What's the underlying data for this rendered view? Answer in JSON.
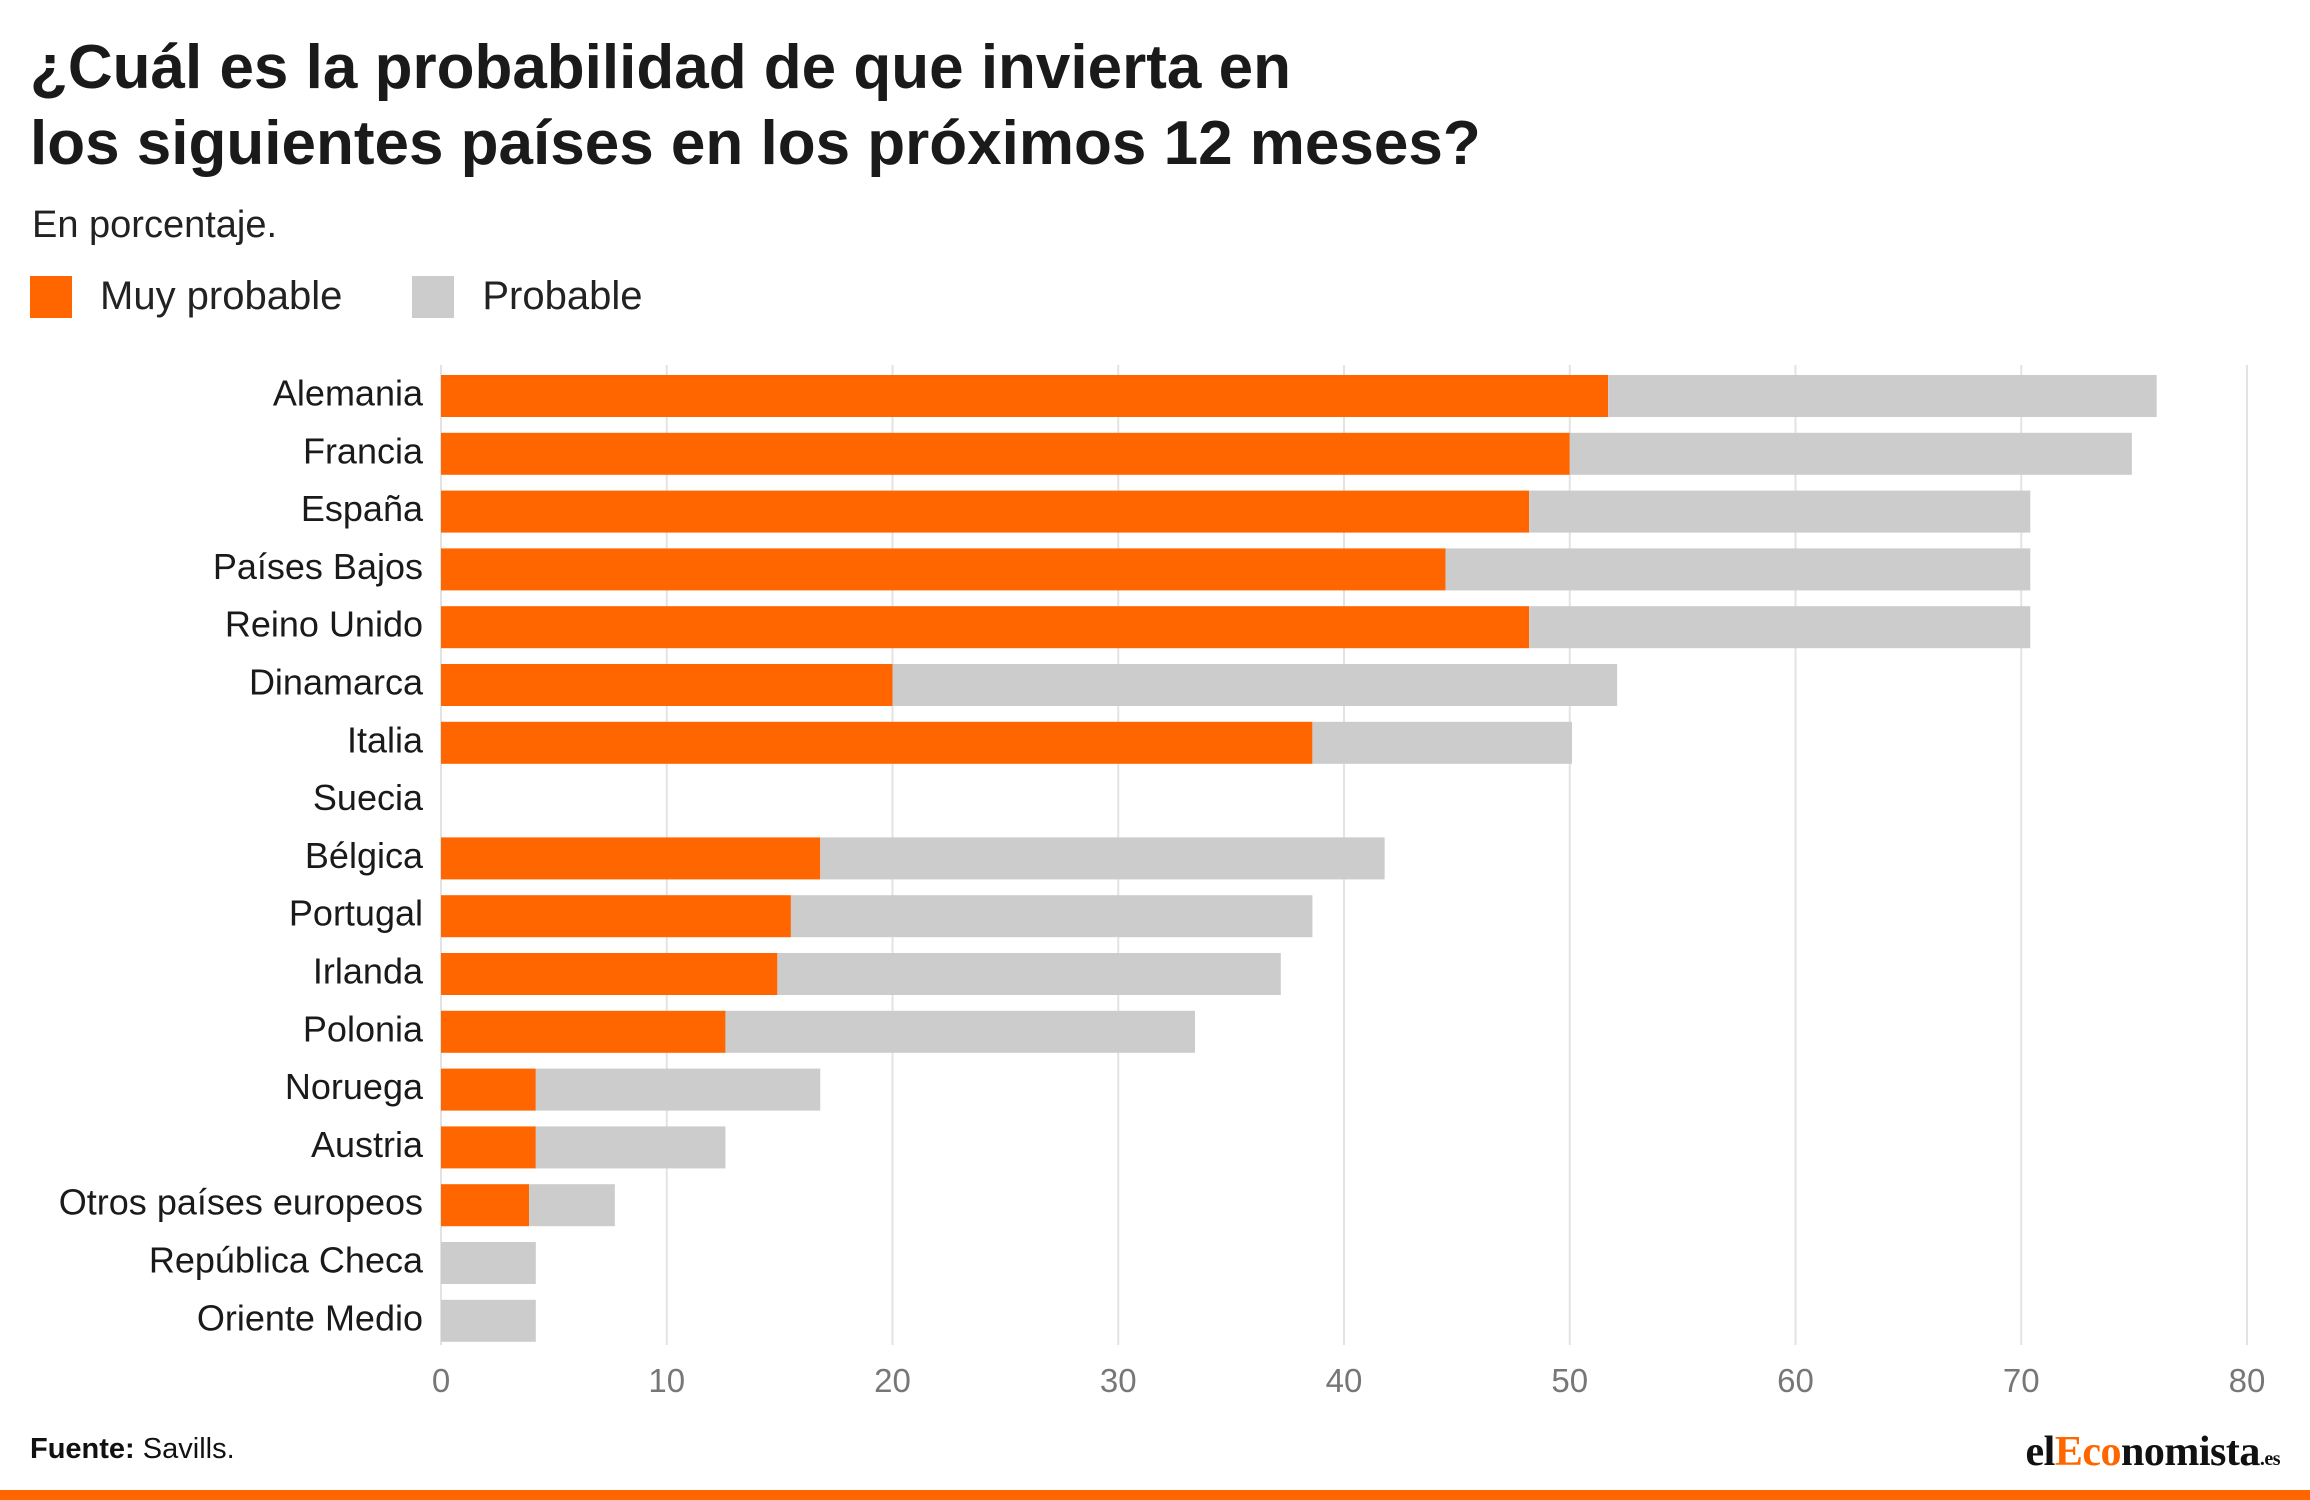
{
  "title_line1": "¿Cuál es la probabilidad de que invierta en",
  "title_line2": "los siguientes países en los próximos 12 meses?",
  "subtitle": "En porcentaje.",
  "colors": {
    "muy_probable": "#ff6600",
    "probable": "#cccccc",
    "grid": "#e3e3e3",
    "brand": "#ff6600"
  },
  "source_label": "Fuente:",
  "source_text": "Savills.",
  "logo": {
    "part1": "el",
    "part2": "Eco",
    "part3": "nomista",
    "tld": ".es"
  },
  "chart_data": {
    "type": "bar",
    "orientation": "horizontal",
    "stacked": true,
    "categories": [
      "Alemania",
      "Francia",
      "España",
      "Países Bajos",
      "Reino Unido",
      "Dinamarca",
      "Italia",
      "Suecia",
      "Bélgica",
      "Portugal",
      "Irlanda",
      "Polonia",
      "Noruega",
      "Austria",
      "Otros países europeos",
      "República Checa",
      "Oriente Medio"
    ],
    "series": [
      {
        "name": "Muy probable",
        "values": [
          51.7,
          50.0,
          48.2,
          44.5,
          48.2,
          20.0,
          38.6,
          0,
          16.8,
          15.5,
          14.9,
          12.6,
          4.2,
          4.2,
          3.9,
          0,
          0
        ]
      },
      {
        "name": "Probable",
        "values": [
          24.3,
          24.9,
          22.2,
          25.9,
          22.2,
          32.1,
          11.5,
          0,
          25.0,
          23.1,
          22.3,
          20.8,
          12.6,
          8.4,
          3.8,
          4.2,
          4.2
        ]
      }
    ],
    "xlim": [
      0,
      80
    ],
    "xticks": [
      0,
      10,
      20,
      30,
      40,
      50,
      60,
      70,
      80
    ],
    "grid": "vertical",
    "legend": "top-left"
  }
}
